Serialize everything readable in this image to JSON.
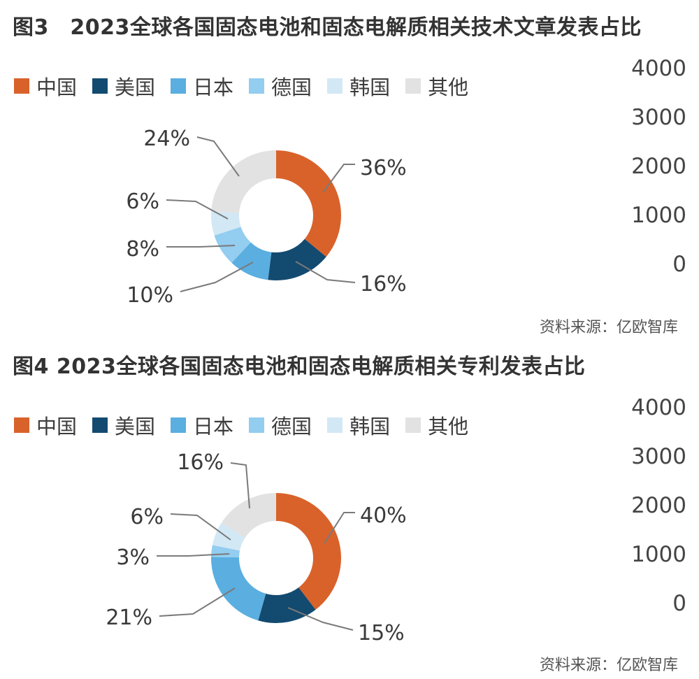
{
  "chart_data": [
    {
      "type": "donut",
      "title": "图3　2023全球各国固态电池和固态电解质相关技术文章发表占比",
      "categories": [
        "中国",
        "美国",
        "日本",
        "德国",
        "韩国",
        "其他"
      ],
      "values": [
        36,
        16,
        10,
        8,
        6,
        24
      ],
      "value_labels": [
        "36%",
        "16%",
        "10%",
        "8%",
        "6%",
        "24%"
      ],
      "colors": [
        "#d9622b",
        "#134a70",
        "#5aaee0",
        "#93cdf0",
        "#d2e8f5",
        "#e2e2e2"
      ],
      "legend_position": "top",
      "axis_ticks": [
        "4000",
        "3000",
        "2000",
        "1000",
        "0"
      ],
      "source": "资料来源：亿欧智库"
    },
    {
      "type": "donut",
      "title": "图4  2023全球各国固态电池和固态电解质相关专利发表占比",
      "categories": [
        "中国",
        "美国",
        "日本",
        "德国",
        "韩国",
        "其他"
      ],
      "values": [
        40,
        15,
        21,
        3,
        6,
        16
      ],
      "value_labels": [
        "40%",
        "15%",
        "21%",
        "3%",
        "6%",
        "16%"
      ],
      "colors": [
        "#d9622b",
        "#134a70",
        "#5aaee0",
        "#93cdf0",
        "#d2e8f5",
        "#e2e2e2"
      ],
      "legend_position": "top",
      "axis_ticks": [
        "4000",
        "3000",
        "2000",
        "1000",
        "0"
      ],
      "source": "资料来源：亿欧智库"
    }
  ]
}
